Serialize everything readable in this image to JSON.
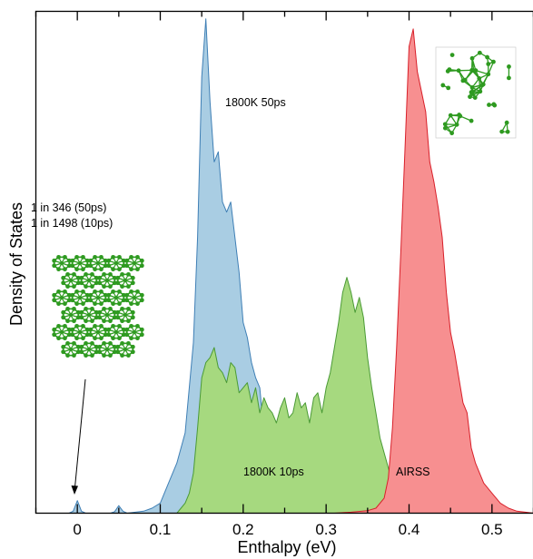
{
  "chart_data": {
    "type": "area",
    "xlabel": "Enthalpy (eV)",
    "ylabel": "Density of States",
    "xlim": [
      -0.05,
      0.55
    ],
    "ylim": [
      0,
      1
    ],
    "x_ticks": [
      "0",
      "0.1",
      "0.2",
      "0.3",
      "0.4",
      "0.5"
    ],
    "x_tick_values": [
      0,
      0.1,
      0.2,
      0.3,
      0.4,
      0.5
    ],
    "y_ticks_labeled": false,
    "series": [
      {
        "name": "1800K 50ps",
        "color": "#a9cde3",
        "stroke": "#3f7fb5",
        "x": [
          -0.01,
          -0.005,
          0,
          0.005,
          0.01,
          0.04,
          0.045,
          0.05,
          0.055,
          0.06,
          0.08,
          0.09,
          0.1,
          0.11,
          0.12,
          0.13,
          0.14,
          0.145,
          0.15,
          0.155,
          0.16,
          0.165,
          0.17,
          0.175,
          0.18,
          0.185,
          0.19,
          0.195,
          0.2,
          0.205,
          0.21,
          0.215,
          0.22,
          0.225,
          0.23,
          0.235,
          0.24,
          0.25,
          0.26
        ],
        "y": [
          0,
          0.004,
          0.025,
          0.004,
          0,
          0,
          0.003,
          0.015,
          0.004,
          0,
          0.004,
          0.01,
          0.02,
          0.06,
          0.1,
          0.16,
          0.34,
          0.55,
          0.87,
          0.985,
          0.82,
          0.7,
          0.72,
          0.62,
          0.6,
          0.62,
          0.55,
          0.48,
          0.38,
          0.35,
          0.3,
          0.27,
          0.25,
          0.16,
          0.08,
          0.03,
          0.01,
          0.003,
          0
        ]
      },
      {
        "name": "1800K 10ps",
        "color": "#a6d97f",
        "stroke": "#4a9a35",
        "x": [
          0.12,
          0.13,
          0.135,
          0.14,
          0.145,
          0.15,
          0.155,
          0.16,
          0.165,
          0.17,
          0.175,
          0.18,
          0.185,
          0.19,
          0.195,
          0.2,
          0.205,
          0.21,
          0.215,
          0.22,
          0.225,
          0.23,
          0.235,
          0.24,
          0.245,
          0.25,
          0.255,
          0.26,
          0.265,
          0.27,
          0.275,
          0.28,
          0.285,
          0.29,
          0.295,
          0.3,
          0.305,
          0.31,
          0.315,
          0.32,
          0.325,
          0.33,
          0.335,
          0.34,
          0.345,
          0.35,
          0.355,
          0.36,
          0.365,
          0.37,
          0.375,
          0.38,
          0.39,
          0.4
        ],
        "y": [
          0,
          0.02,
          0.04,
          0.08,
          0.17,
          0.27,
          0.3,
          0.31,
          0.33,
          0.29,
          0.28,
          0.26,
          0.3,
          0.29,
          0.24,
          0.25,
          0.26,
          0.22,
          0.25,
          0.2,
          0.23,
          0.21,
          0.2,
          0.18,
          0.21,
          0.23,
          0.19,
          0.2,
          0.24,
          0.21,
          0.22,
          0.18,
          0.23,
          0.24,
          0.2,
          0.25,
          0.28,
          0.33,
          0.38,
          0.44,
          0.47,
          0.44,
          0.4,
          0.43,
          0.39,
          0.31,
          0.25,
          0.2,
          0.15,
          0.12,
          0.09,
          0.06,
          0.02,
          0
        ]
      },
      {
        "name": "AIRSS",
        "color": "#f78f90",
        "stroke": "#d8202a",
        "x": [
          0.31,
          0.33,
          0.35,
          0.36,
          0.37,
          0.375,
          0.38,
          0.385,
          0.39,
          0.395,
          0.4,
          0.405,
          0.41,
          0.415,
          0.42,
          0.425,
          0.43,
          0.435,
          0.44,
          0.445,
          0.45,
          0.455,
          0.46,
          0.465,
          0.47,
          0.475,
          0.48,
          0.49,
          0.5,
          0.51,
          0.52,
          0.53,
          0.55
        ],
        "y": [
          0,
          0.002,
          0.005,
          0.01,
          0.03,
          0.07,
          0.17,
          0.33,
          0.52,
          0.72,
          0.93,
          0.965,
          0.88,
          0.84,
          0.8,
          0.7,
          0.66,
          0.61,
          0.55,
          0.44,
          0.36,
          0.32,
          0.27,
          0.22,
          0.2,
          0.13,
          0.1,
          0.06,
          0.04,
          0.02,
          0.01,
          0.004,
          0
        ]
      }
    ],
    "annotations": {
      "label_50ps": "1800K 50ps",
      "label_10ps": "1800K 10ps",
      "label_airss": "AIRSS",
      "ratio_line1": "1 in 346 (50ps)",
      "ratio_line2": "1 in 1498 (10ps)"
    },
    "structure_color": "#2e9a20",
    "grid": false
  }
}
